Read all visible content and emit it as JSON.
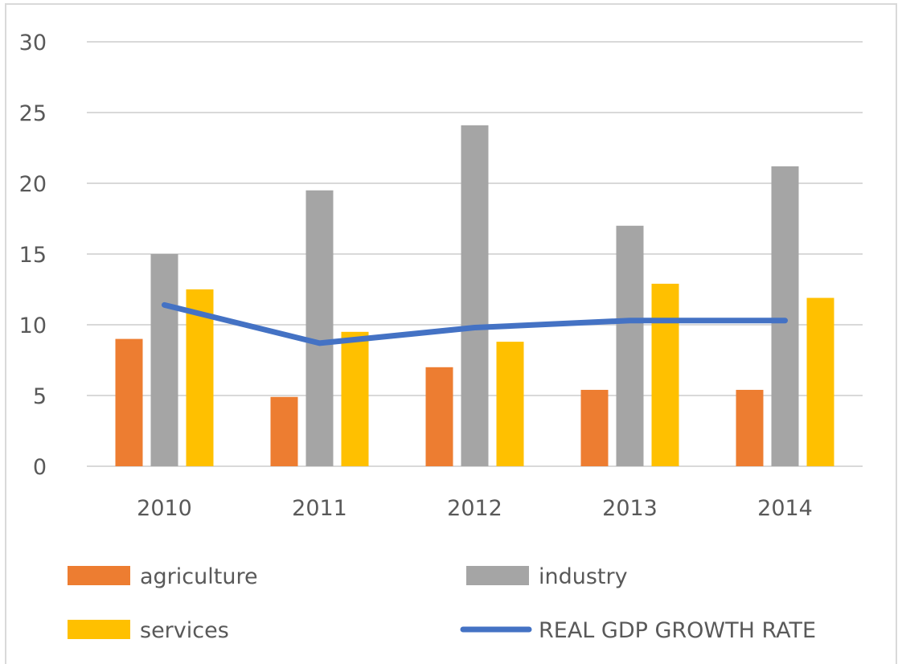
{
  "chart_data": {
    "type": "bar",
    "title": "",
    "xlabel": "",
    "ylabel": "",
    "categories": [
      "2010",
      "2011",
      "2012",
      "2013",
      "2014"
    ],
    "ylim": [
      0,
      30
    ],
    "yticks": [
      0,
      5,
      10,
      15,
      20,
      25,
      30
    ],
    "grid": true,
    "legend_position": "bottom",
    "series": [
      {
        "name": "agriculture",
        "type": "bar",
        "color": "#ed7d31",
        "values": [
          9.0,
          4.9,
          7.0,
          5.4,
          5.4
        ]
      },
      {
        "name": "industry",
        "type": "bar",
        "color": "#a5a5a5",
        "values": [
          15.0,
          19.5,
          24.1,
          17.0,
          21.2
        ]
      },
      {
        "name": "services",
        "type": "bar",
        "color": "#ffc000",
        "values": [
          12.5,
          9.5,
          8.8,
          12.9,
          11.9
        ]
      },
      {
        "name": "REAL GDP GROWTH RATE",
        "type": "line",
        "color": "#4472c4",
        "values": [
          11.4,
          8.7,
          9.8,
          10.3,
          10.3
        ]
      }
    ]
  }
}
